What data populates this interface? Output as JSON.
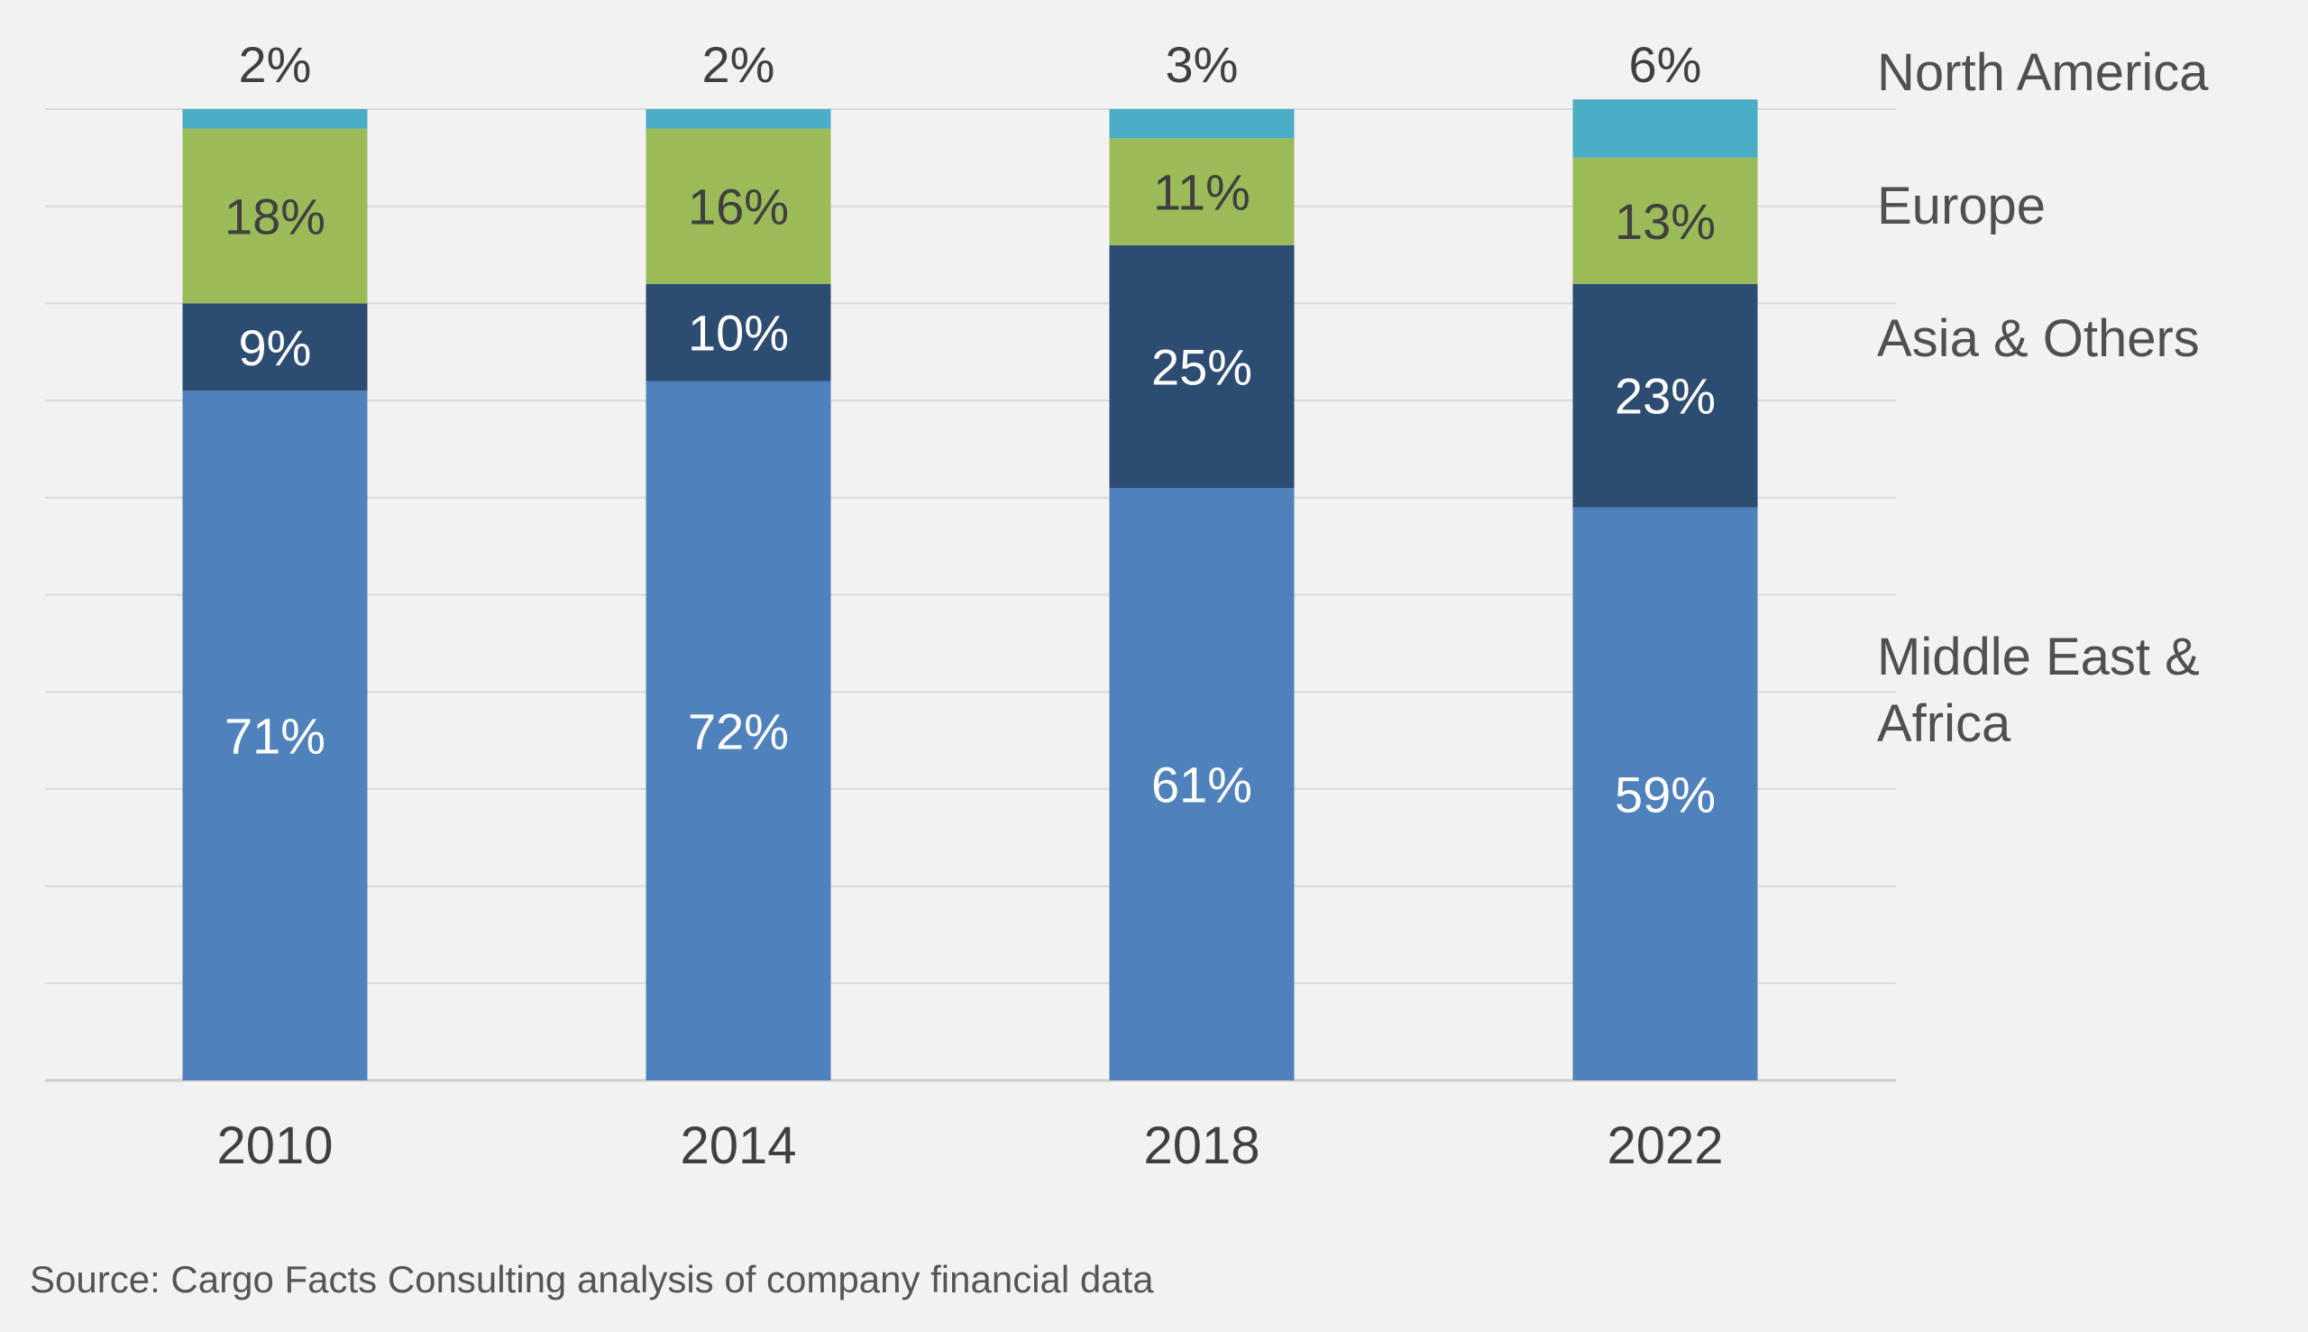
{
  "chart_data": {
    "type": "bar",
    "stacked": true,
    "categories": [
      "2010",
      "2014",
      "2018",
      "2022"
    ],
    "ylim": [
      0,
      100
    ],
    "grid": true,
    "legend": "right, aligned with stacks",
    "series": [
      {
        "name": "Middle East & Africa",
        "values": [
          71,
          72,
          61,
          59
        ],
        "labels": [
          "71%",
          "72%",
          "61%",
          "59%"
        ],
        "color": "#4f81bd",
        "label_color": "#ffffff"
      },
      {
        "name": "Asia & Others",
        "values": [
          9,
          10,
          25,
          23
        ],
        "labels": [
          "9%",
          "10%",
          "25%",
          "23%"
        ],
        "color": "#2d4c72",
        "label_color": "#ffffff"
      },
      {
        "name": "Europe",
        "values": [
          18,
          16,
          11,
          13
        ],
        "labels": [
          "18%",
          "16%",
          "11%",
          "13%"
        ],
        "color": "#9bbb59",
        "label_color": "#404040"
      },
      {
        "name": "North America",
        "values": [
          2,
          2,
          3,
          6
        ],
        "labels": [
          "2%",
          "2%",
          "3%",
          "6%"
        ],
        "color": "#4bacc6",
        "label_color": "#404040"
      }
    ],
    "legend_labels": [
      {
        "series": "North America",
        "lines": [
          "North America"
        ]
      },
      {
        "series": "Europe",
        "lines": [
          "Europe"
        ]
      },
      {
        "series": "Asia & Others",
        "lines": [
          "Asia & Others"
        ]
      },
      {
        "series": "Middle East & Africa",
        "lines": [
          "Middle East &",
          "Africa"
        ]
      }
    ],
    "source": "Source: Cargo Facts Consulting analysis of company financial data"
  }
}
